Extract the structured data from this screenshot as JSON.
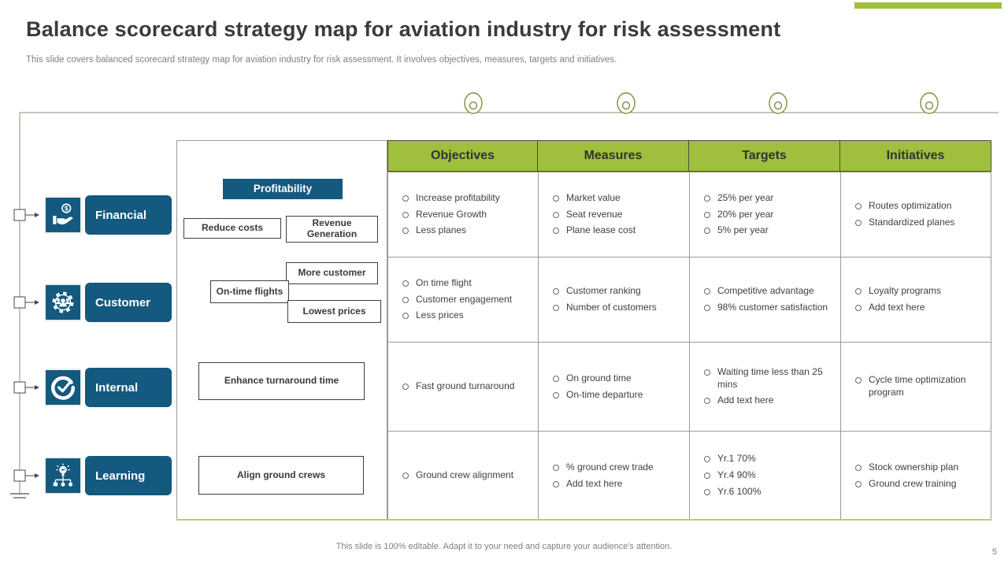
{
  "slide": {
    "title": "Balance scorecard strategy map for aviation industry for risk assessment",
    "subtitle": "This slide covers balanced scorecard strategy map for aviation industry for risk assessment. It involves objectives, measures, targets and initiatives.",
    "footer": "This slide is 100% editable. Adapt it to your need and capture your audience's attention.",
    "page_number": "5"
  },
  "colors": {
    "accent_green": "#A0BF3C",
    "accent_blue": "#14597F"
  },
  "perspectives": [
    {
      "label": "Financial",
      "icon": "hand-coin-icon"
    },
    {
      "label": "Customer",
      "icon": "customer-gear-icon"
    },
    {
      "label": "Internal",
      "icon": "target-check-icon"
    },
    {
      "label": "Learning",
      "icon": "learning-bulb-icon"
    }
  ],
  "flowchart": {
    "boxes": [
      {
        "label": "Profitability"
      },
      {
        "label": "Reduce costs"
      },
      {
        "label": "Revenue Generation"
      },
      {
        "label": "More customer"
      },
      {
        "label": "On-time flights"
      },
      {
        "label": "Lowest prices"
      },
      {
        "label": "Enhance turnaround time"
      },
      {
        "label": "Align ground crews"
      }
    ]
  },
  "table": {
    "headers": [
      "Objectives",
      "Measures",
      "Targets",
      "Initiatives"
    ],
    "rows": [
      {
        "perspective": "Financial",
        "objectives": [
          "Increase profitability",
          "Revenue Growth",
          "Less planes"
        ],
        "measures": [
          "Market value",
          "Seat revenue",
          "Plane lease cost"
        ],
        "targets": [
          "25% per year",
          "20% per year",
          "5% per year"
        ],
        "initiatives": [
          "Routes optimization",
          "Standardized planes"
        ]
      },
      {
        "perspective": "Customer",
        "objectives": [
          "On time flight",
          "Customer engagement",
          "Less prices"
        ],
        "measures": [
          "Customer ranking",
          "Number of customers"
        ],
        "targets": [
          "Competitive advantage",
          "98% customer satisfaction"
        ],
        "initiatives": [
          "Loyalty programs",
          "Add text here"
        ]
      },
      {
        "perspective": "Internal",
        "objectives": [
          "Fast ground turnaround"
        ],
        "measures": [
          "On ground time",
          "On-time departure"
        ],
        "targets": [
          "Waiting time less than 25 mins",
          "Add text here"
        ],
        "initiatives": [
          "Cycle time optimization program"
        ]
      },
      {
        "perspective": "Learning",
        "objectives": [
          "Ground crew alignment"
        ],
        "measures": [
          "% ground crew trade",
          "Add text here"
        ],
        "targets": [
          "Yr.1 70%",
          "Yr.4 90%",
          "Yr.6 100%"
        ],
        "initiatives": [
          "Stock ownership plan",
          "Ground crew training"
        ]
      }
    ]
  }
}
